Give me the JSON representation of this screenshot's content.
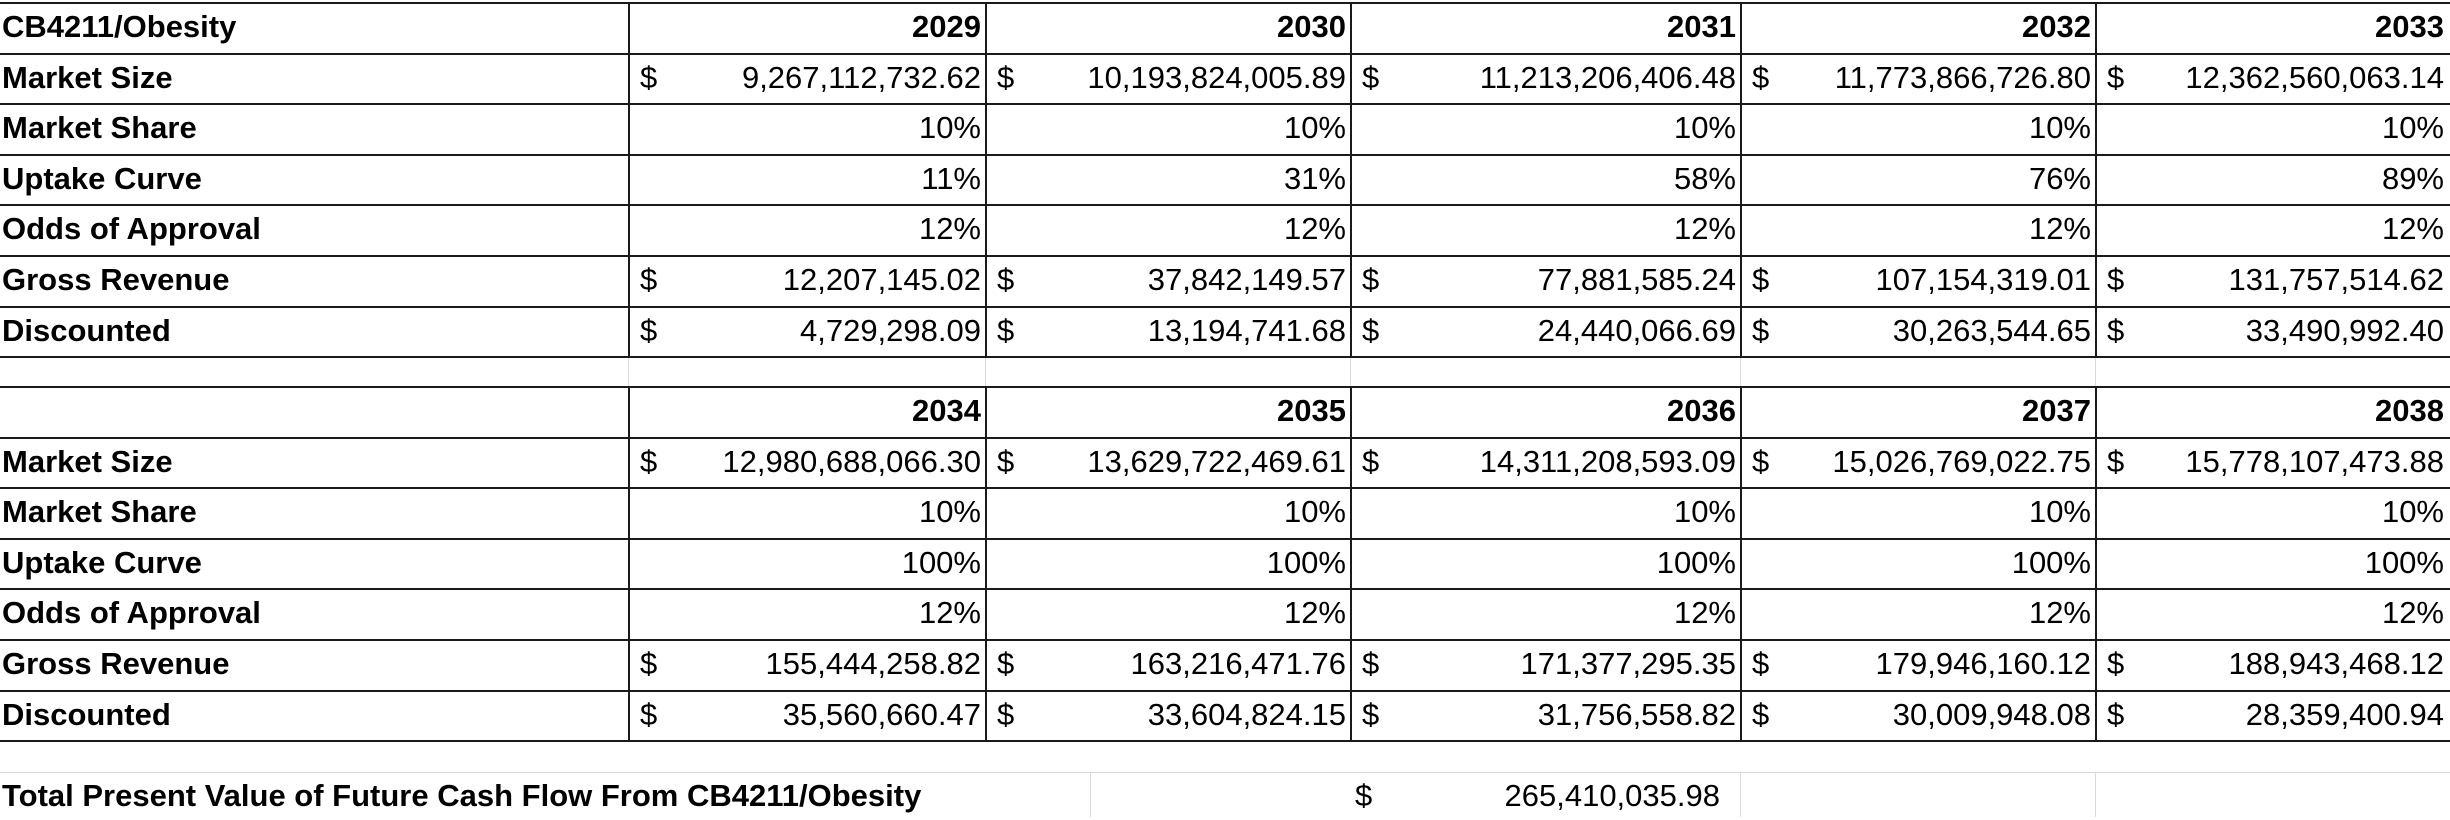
{
  "table1": {
    "title": "CB4211/Obesity",
    "years": [
      "2029",
      "2030",
      "2031",
      "2032",
      "2033"
    ],
    "rows": [
      {
        "label": "Market Size",
        "dollar": true,
        "values": [
          "9,267,112,732.62",
          "10,193,824,005.89",
          "11,213,206,406.48",
          "11,773,866,726.80",
          "12,362,560,063.14"
        ]
      },
      {
        "label": "Market Share",
        "dollar": false,
        "values": [
          "10%",
          "10%",
          "10%",
          "10%",
          "10%"
        ]
      },
      {
        "label": "Uptake Curve",
        "dollar": false,
        "values": [
          "11%",
          "31%",
          "58%",
          "76%",
          "89%"
        ]
      },
      {
        "label": "Odds of Approval",
        "dollar": false,
        "values": [
          "12%",
          "12%",
          "12%",
          "12%",
          "12%"
        ]
      },
      {
        "label": "Gross Revenue",
        "dollar": true,
        "values": [
          "12,207,145.02",
          "37,842,149.57",
          "77,881,585.24",
          "107,154,319.01",
          "131,757,514.62"
        ]
      },
      {
        "label": "Discounted",
        "dollar": true,
        "values": [
          "4,729,298.09",
          "13,194,741.68",
          "24,440,066.69",
          "30,263,544.65",
          "33,490,992.40"
        ]
      }
    ]
  },
  "table2": {
    "years": [
      "2034",
      "2035",
      "2036",
      "2037",
      "2038"
    ],
    "rows": [
      {
        "label": "Market Size",
        "dollar": true,
        "values": [
          "12,980,688,066.30",
          "13,629,722,469.61",
          "14,311,208,593.09",
          "15,026,769,022.75",
          "15,778,107,473.88"
        ]
      },
      {
        "label": "Market Share",
        "dollar": false,
        "values": [
          "10%",
          "10%",
          "10%",
          "10%",
          "10%"
        ]
      },
      {
        "label": "Uptake Curve",
        "dollar": false,
        "values": [
          "100%",
          "100%",
          "100%",
          "100%",
          "100%"
        ]
      },
      {
        "label": "Odds of Approval",
        "dollar": false,
        "values": [
          "12%",
          "12%",
          "12%",
          "12%",
          "12%"
        ]
      },
      {
        "label": "Gross Revenue",
        "dollar": true,
        "values": [
          "155,444,258.82",
          "163,216,471.76",
          "171,377,295.35",
          "179,946,160.12",
          "188,943,468.12"
        ]
      },
      {
        "label": "Discounted",
        "dollar": true,
        "values": [
          "35,560,660.47",
          "33,604,824.15",
          "31,756,558.82",
          "30,009,948.08",
          "28,359,400.94"
        ]
      }
    ]
  },
  "total": {
    "label": "Total Present Value of Future Cash Flow From CB4211/Obesity",
    "value": "265,410,035.98"
  },
  "currency_symbol": "$"
}
